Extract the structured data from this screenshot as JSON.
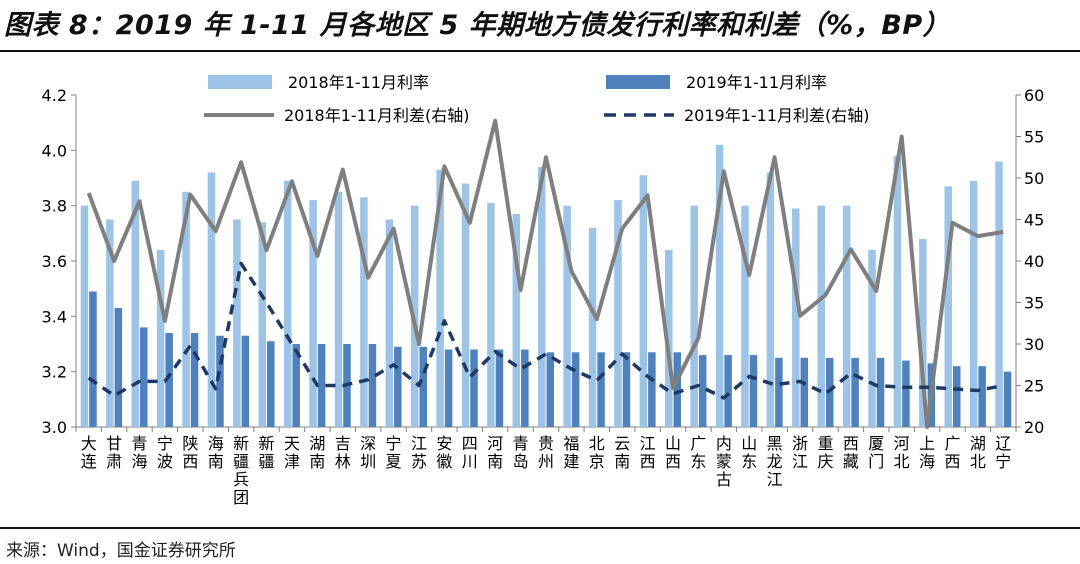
{
  "title": "图表 8：2019 年 1-11 月各地区 5 年期地方债发行利率和利差（%，BP）",
  "source": "来源：Wind，国金证券研究所",
  "colors": {
    "rate_2018": "#9DC3E6",
    "rate_2019": "#4F81BD",
    "spread_2018": "#7F7F7F",
    "spread_2019": "#1F3864"
  },
  "chart_data": {
    "type": "bar",
    "title": "",
    "categories": [
      "大连",
      "甘肃",
      "青海",
      "宁波",
      "陕西",
      "海南",
      "新疆兵团",
      "新疆",
      "天津",
      "湖南",
      "吉林",
      "深圳",
      "宁夏",
      "江苏",
      "安徽",
      "四川",
      "河南",
      "青岛",
      "贵州",
      "福建",
      "北京",
      "云南",
      "江西",
      "山西",
      "广东",
      "内蒙古",
      "山东",
      "黑龙江",
      "浙江",
      "重庆",
      "西藏",
      "厦门",
      "河北",
      "上海",
      "广西",
      "湖北",
      "辽宁"
    ],
    "y_left": {
      "range": [
        3.0,
        4.2
      ],
      "ticks": [
        "3.0",
        "3.2",
        "3.4",
        "3.6",
        "3.8",
        "4.0",
        "4.2"
      ]
    },
    "y_right": {
      "range": [
        20,
        60
      ],
      "ticks": [
        "20",
        "25",
        "30",
        "35",
        "40",
        "45",
        "50",
        "55",
        "60"
      ]
    },
    "legend_position": "top",
    "series": [
      {
        "name": "2018年1-11月利率",
        "type": "bar",
        "axis": "left",
        "values": [
          3.8,
          3.75,
          3.89,
          3.64,
          3.85,
          3.92,
          3.75,
          3.74,
          3.89,
          3.82,
          3.85,
          3.83,
          3.75,
          3.8,
          3.93,
          3.88,
          3.81,
          3.77,
          3.94,
          3.8,
          3.72,
          3.82,
          3.91,
          3.64,
          3.8,
          4.02,
          3.8,
          3.92,
          3.79,
          3.8,
          3.8,
          3.64,
          3.98,
          3.68,
          3.87,
          3.89,
          3.96
        ]
      },
      {
        "name": "2019年1-11月利率",
        "type": "bar",
        "axis": "left",
        "values": [
          3.49,
          3.43,
          3.36,
          3.34,
          3.34,
          3.33,
          3.33,
          3.31,
          3.3,
          3.3,
          3.3,
          3.3,
          3.29,
          3.29,
          3.28,
          3.28,
          3.28,
          3.28,
          3.27,
          3.27,
          3.27,
          3.27,
          3.27,
          3.27,
          3.26,
          3.26,
          3.26,
          3.25,
          3.25,
          3.25,
          3.25,
          3.25,
          3.24,
          3.23,
          3.22,
          3.22,
          3.2
        ]
      },
      {
        "name": "2018年1-11月利差(右轴)",
        "type": "line",
        "axis": "right",
        "values": [
          48.2,
          40.0,
          47.2,
          32.8,
          48.0,
          43.6,
          51.9,
          41.3,
          49.6,
          40.6,
          51.0,
          38.0,
          43.9,
          30.0,
          51.4,
          44.6,
          56.9,
          36.5,
          52.5,
          38.8,
          33.0,
          43.9,
          47.9,
          24.7,
          30.7,
          50.8,
          38.3,
          52.5,
          33.4,
          35.9,
          41.4,
          36.4,
          55.0,
          20.0,
          44.6,
          43.0,
          43.5
        ]
      },
      {
        "name": "2019年1-11月利差(右轴)",
        "type": "line",
        "axis": "right",
        "dashed": true,
        "values": [
          25.9,
          23.8,
          25.5,
          25.5,
          29.8,
          24.6,
          39.7,
          35.0,
          30.0,
          25.0,
          25.0,
          25.7,
          27.5,
          25.0,
          32.8,
          26.0,
          29.1,
          27.0,
          28.8,
          27.0,
          25.6,
          28.8,
          26.1,
          24.0,
          25.0,
          23.5,
          26.1,
          25.1,
          25.5,
          24.0,
          26.5,
          25.0,
          24.8,
          24.8,
          24.6,
          24.4,
          25.0
        ]
      }
    ]
  }
}
